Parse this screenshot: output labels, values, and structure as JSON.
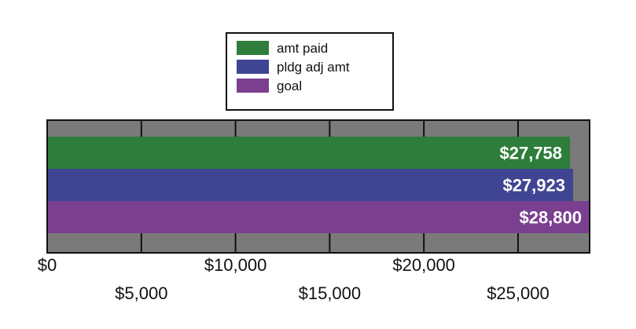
{
  "chart_data": {
    "type": "bar",
    "orientation": "horizontal",
    "series": [
      {
        "name": "amt paid",
        "value": 27758,
        "label": "$27,758",
        "color": "#2e7d3a"
      },
      {
        "name": "pldg adj amt",
        "value": 27923,
        "label": "$27,923",
        "color": "#3f4592"
      },
      {
        "name": "goal",
        "value": 28800,
        "label": "$28,800",
        "color": "#7b3f8f"
      }
    ],
    "xlim": [
      0,
      28800
    ],
    "ticks": [
      {
        "value": 0,
        "label": "$0",
        "row": "upper"
      },
      {
        "value": 5000,
        "label": "$5,000",
        "row": "lower"
      },
      {
        "value": 10000,
        "label": "$10,000",
        "row": "upper"
      },
      {
        "value": 15000,
        "label": "$15,000",
        "row": "lower"
      },
      {
        "value": 20000,
        "label": "$20,000",
        "row": "upper"
      },
      {
        "value": 25000,
        "label": "$25,000",
        "row": "lower"
      }
    ],
    "grid": true,
    "legend_position": "top-center",
    "plot_background": "#7a7a7a"
  }
}
